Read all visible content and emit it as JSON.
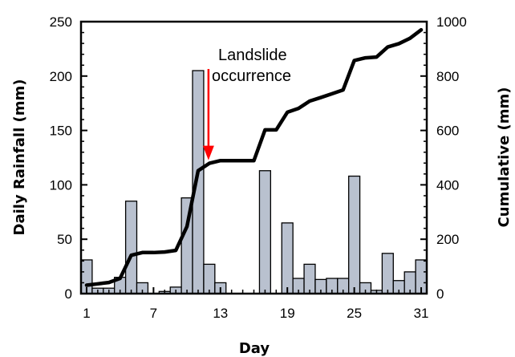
{
  "chart_data": {
    "type": "bar+line",
    "xlabel": "Day",
    "ylabel_left": "Daily Rainfall (mm)",
    "ylabel_right": "Cumulative (mm)",
    "x_ticks": [
      1,
      7,
      13,
      19,
      25,
      31
    ],
    "y_left_ticks": [
      0,
      50,
      100,
      150,
      200,
      250
    ],
    "y_right_ticks": [
      0,
      200,
      400,
      600,
      800,
      1000
    ],
    "ylim_left": [
      0,
      250
    ],
    "ylim_right": [
      0,
      1000
    ],
    "xlim": [
      0.5,
      31.5
    ],
    "grid": false,
    "days": [
      1,
      2,
      3,
      4,
      5,
      6,
      7,
      8,
      9,
      10,
      11,
      12,
      13,
      14,
      15,
      16,
      17,
      18,
      19,
      20,
      21,
      22,
      23,
      24,
      25,
      26,
      27,
      28,
      29,
      30,
      31
    ],
    "series": [
      {
        "name": "Daily Rainfall",
        "kind": "bar",
        "axis": "left",
        "color": "#b9c1cf",
        "values": [
          31,
          5,
          5,
          15,
          85,
          10,
          0,
          2,
          6,
          88,
          205,
          27,
          10,
          0,
          0,
          0,
          113,
          0,
          65,
          14,
          27,
          13,
          14,
          14,
          108,
          10,
          3,
          37,
          12,
          20,
          31
        ]
      },
      {
        "name": "Cumulative",
        "kind": "line",
        "axis": "right",
        "color": "#000000",
        "values": [
          31,
          36,
          41,
          56,
          141,
          151,
          151,
          153,
          159,
          247,
          452,
          479,
          489,
          489,
          489,
          489,
          602,
          602,
          667,
          681,
          708,
          721,
          735,
          749,
          857,
          867,
          870,
          907,
          919,
          939,
          970
        ]
      }
    ],
    "annotation": {
      "text_lines": [
        "Landslide",
        "occurrence"
      ],
      "day": 12,
      "arrow_color": "#ff0000"
    }
  }
}
